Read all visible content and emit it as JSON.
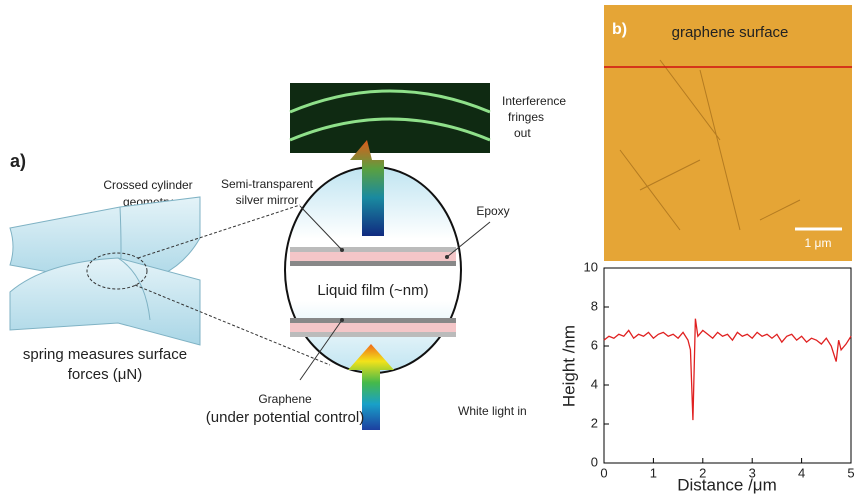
{
  "panel_a": {
    "label": "a)",
    "crossed_cylinder": [
      "Crossed cylinder",
      "geometry"
    ],
    "mirror": [
      "Semi-transparent",
      "silver mirror"
    ],
    "epoxy": "Epoxy",
    "fringes": [
      "Interference",
      "fringes",
      "out"
    ],
    "liquid_film": "Liquid film (~nm)",
    "spring": [
      "spring measures surface",
      "forces (μN)"
    ],
    "graphene": [
      "Graphene",
      "(under potential control)"
    ],
    "light_in": "White light in"
  },
  "panel_b": {
    "label": "b)",
    "image_caption": "graphene surface",
    "scale_bar": "1 μm"
  },
  "chart_data": {
    "type": "line",
    "x": [
      0,
      0.1,
      0.2,
      0.3,
      0.4,
      0.5,
      0.6,
      0.7,
      0.8,
      0.9,
      1.0,
      1.1,
      1.2,
      1.3,
      1.4,
      1.5,
      1.6,
      1.7,
      1.75,
      1.8,
      1.85,
      1.9,
      2.0,
      2.1,
      2.2,
      2.3,
      2.4,
      2.5,
      2.6,
      2.7,
      2.8,
      2.9,
      3.0,
      3.1,
      3.2,
      3.3,
      3.4,
      3.5,
      3.6,
      3.7,
      3.8,
      3.9,
      4.0,
      4.1,
      4.2,
      4.3,
      4.4,
      4.5,
      4.6,
      4.7,
      4.75,
      4.8,
      4.9,
      5.0
    ],
    "values": [
      6.3,
      6.5,
      6.4,
      6.6,
      6.5,
      6.8,
      6.4,
      6.6,
      6.5,
      6.7,
      6.4,
      6.6,
      6.7,
      6.5,
      6.6,
      6.4,
      6.7,
      6.3,
      5.8,
      2.2,
      7.4,
      6.5,
      6.8,
      6.6,
      6.4,
      6.7,
      6.5,
      6.6,
      6.3,
      6.7,
      6.5,
      6.6,
      6.4,
      6.7,
      6.5,
      6.6,
      6.4,
      6.6,
      6.2,
      6.5,
      6.6,
      6.3,
      6.5,
      6.2,
      6.4,
      6.3,
      6.1,
      6.4,
      6.0,
      5.2,
      6.3,
      5.8,
      6.1,
      6.5
    ],
    "color": "#e02020",
    "xlabel": "Distance /μm",
    "ylabel": "Height /nm",
    "xlim": [
      0,
      5
    ],
    "ylim": [
      0,
      10
    ],
    "xticks": [
      0,
      1,
      2,
      3,
      4,
      5
    ],
    "yticks": [
      0,
      2,
      4,
      6,
      8,
      10
    ]
  }
}
